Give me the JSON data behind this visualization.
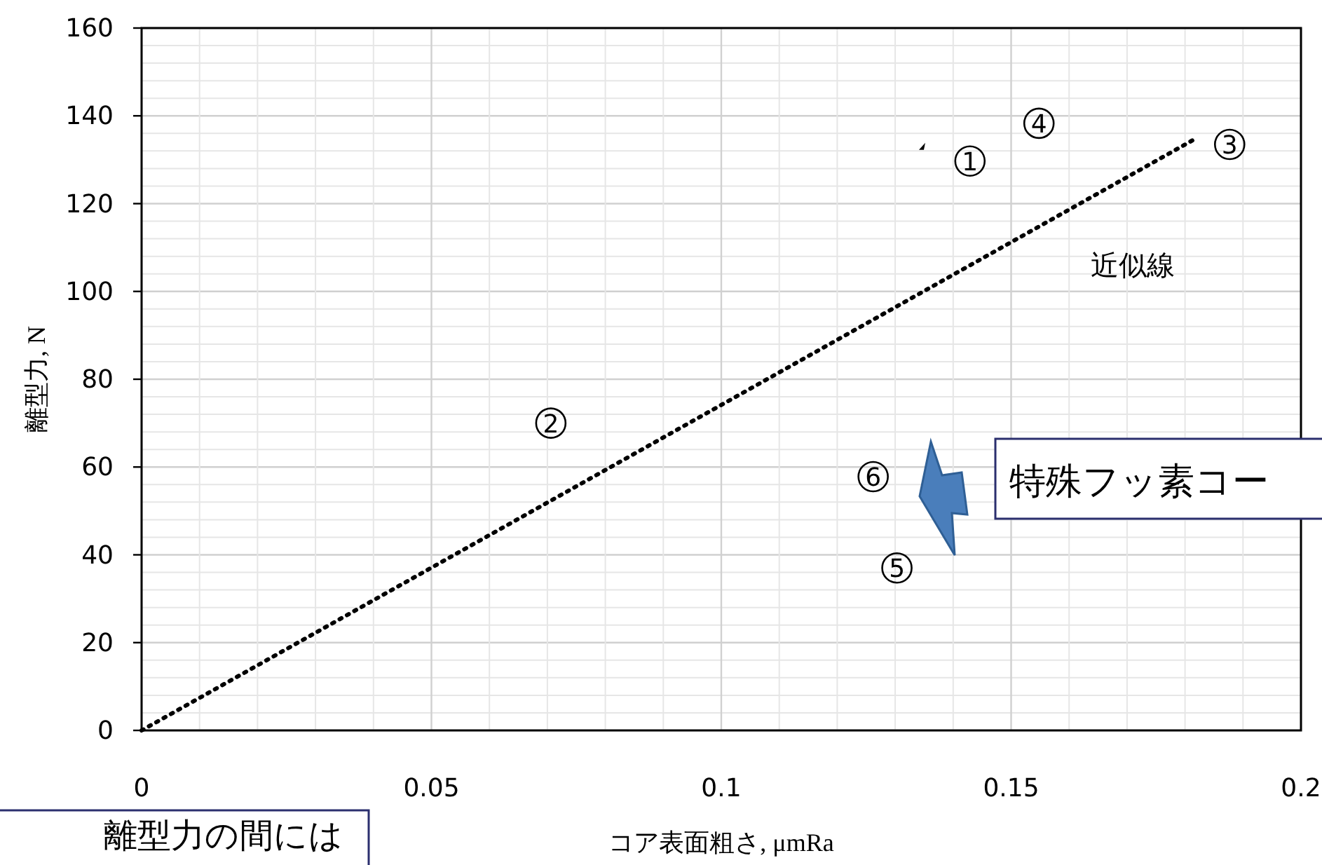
{
  "chart_data": {
    "type": "scatter",
    "xlabel": "コア表面粗さ, μmRa",
    "ylabel": "離型力, N",
    "xlim": [
      0,
      0.2
    ],
    "xticks": [
      0,
      0.05,
      0.1,
      0.15,
      0.2
    ],
    "ylim": [
      0,
      160
    ],
    "yticks": [
      0,
      20,
      40,
      60,
      80,
      100,
      120,
      140,
      160
    ],
    "grid": true,
    "series": [
      {
        "type": "line",
        "x": [
          0,
          0.1814
        ],
        "values": [
          0,
          134.5
        ],
        "color": "#000000",
        "line_style": "dotted"
      },
      {
        "type": "scatter",
        "x": [
          0.1347
        ],
        "values": [
          132.9
        ],
        "color": "#000000",
        "marker": "triangle"
      },
      {
        "type": "scatter",
        "x": [
          0.1429,
          0.0706,
          0.1877,
          0.1548,
          0.1303,
          0.1262
        ],
        "values": [
          129.7,
          70,
          133.5,
          138.3,
          37,
          57.8
        ],
        "color": "#000000",
        "marker": "circle"
      }
    ],
    "annotations": [
      {
        "text": "1",
        "x": 0.1429,
        "y": 129.7
      },
      {
        "text": "2",
        "x": 0.0706,
        "y": 70
      },
      {
        "text": "3",
        "x": 0.1877,
        "y": 133.5
      },
      {
        "text": "4",
        "x": 0.1548,
        "y": 138.3
      },
      {
        "text": "5",
        "x": 0.1303,
        "y": 37
      },
      {
        "text": "6",
        "x": 0.1262,
        "y": 57.8
      },
      "近似線",
      "特殊フッ素コー",
      "離型力の間には"
    ]
  }
}
